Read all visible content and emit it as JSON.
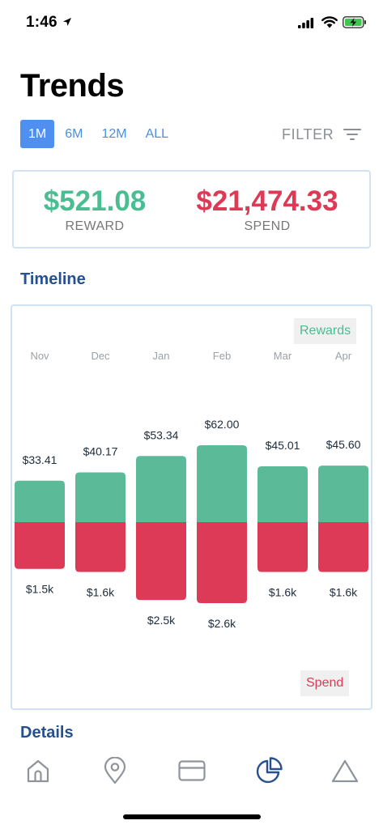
{
  "status_bar": {
    "time": "1:46"
  },
  "header": {
    "title": "Trends",
    "tabs": [
      {
        "label": "1M",
        "active": true
      },
      {
        "label": "6M",
        "active": false
      },
      {
        "label": "12M",
        "active": false
      },
      {
        "label": "ALL",
        "active": false
      }
    ],
    "filter_label": "FILTER"
  },
  "summary": {
    "reward_value": "$521.08",
    "reward_label": "REWARD",
    "spend_value": "$21,474.33",
    "spend_label": "SPEND"
  },
  "timeline": {
    "title": "Timeline",
    "legend_rewards": "Rewards",
    "legend_spend": "Spend"
  },
  "details": {
    "title": "Details"
  },
  "colors": {
    "reward": "#5bbb98",
    "spend": "#dc3a56",
    "accent": "#4f8ff0",
    "section_title": "#27508f"
  },
  "chart_data": {
    "type": "bar",
    "categories": [
      "Nov",
      "Dec",
      "Jan",
      "Feb",
      "Mar",
      "Apr"
    ],
    "series": [
      {
        "name": "Rewards",
        "values": [
          33.41,
          40.17,
          53.34,
          62.0,
          45.01,
          45.6
        ],
        "labels": [
          "$33.41",
          "$40.17",
          "$53.34",
          "$62.00",
          "$45.01",
          "$45.60"
        ]
      },
      {
        "name": "Spend",
        "values": [
          1500,
          1600,
          2500,
          2600,
          1600,
          1600
        ],
        "labels": [
          "$1.5k",
          "$1.6k",
          "$2.5k",
          "$2.6k",
          "$1.6k",
          "$1.6k"
        ]
      }
    ],
    "layout": "diverging",
    "grid": false
  },
  "bottom_nav": [
    {
      "icon": "home-icon",
      "active": false
    },
    {
      "icon": "location-pin-icon",
      "active": false
    },
    {
      "icon": "credit-card-icon",
      "active": false
    },
    {
      "icon": "pie-chart-icon",
      "active": true
    },
    {
      "icon": "triangle-icon",
      "active": false
    }
  ]
}
